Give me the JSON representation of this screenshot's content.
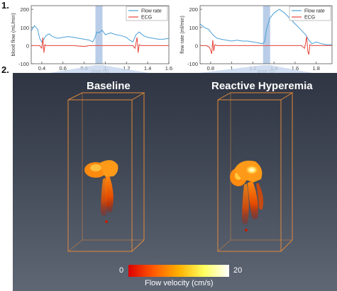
{
  "panel_labels": {
    "top": "1.",
    "bottom": "2."
  },
  "chart_data": [
    {
      "type": "line",
      "xlabel": "time (s)",
      "ylabel": "blood flow (mL/min)",
      "xlim": [
        0.3,
        1.6
      ],
      "ylim": [
        -100,
        220
      ],
      "xticks": [
        "0.4",
        "0.6",
        "0.8",
        "1",
        "1.2",
        "1.4",
        "1.6"
      ],
      "yticks": [
        "-100",
        "0",
        "100",
        "200"
      ],
      "highlight_x": 0.94,
      "legend_position": "top-right",
      "series": [
        {
          "name": "Flow rate",
          "color": "#4a9fd6",
          "x": [
            0.3,
            0.33,
            0.36,
            0.38,
            0.4,
            0.42,
            0.44,
            0.47,
            0.5,
            0.55,
            0.6,
            0.65,
            0.7,
            0.75,
            0.8,
            0.85,
            0.88,
            0.9,
            0.92,
            0.94,
            0.97,
            1.0,
            1.05,
            1.1,
            1.15,
            1.2,
            1.23,
            1.26,
            1.29,
            1.32,
            1.36,
            1.4,
            1.45,
            1.5,
            1.55,
            1.6
          ],
          "y": [
            80,
            110,
            90,
            40,
            20,
            35,
            55,
            65,
            50,
            40,
            45,
            50,
            45,
            40,
            35,
            30,
            20,
            40,
            75,
            70,
            85,
            60,
            70,
            60,
            55,
            45,
            30,
            20,
            60,
            75,
            55,
            45,
            40,
            35,
            35,
            40
          ]
        },
        {
          "name": "ECG",
          "color": "#e8453c",
          "x": [
            0.3,
            0.38,
            0.4,
            0.41,
            0.42,
            0.43,
            0.44,
            0.5,
            0.6,
            0.7,
            0.8,
            0.85,
            0.88,
            0.9,
            0.92,
            0.94,
            1.0,
            1.1,
            1.2,
            1.26,
            1.28,
            1.3,
            1.31,
            1.32,
            1.34,
            1.4,
            1.5,
            1.6
          ],
          "y": [
            0,
            0,
            -15,
            45,
            -40,
            5,
            0,
            0,
            0,
            0,
            -5,
            0,
            0,
            0,
            0,
            0,
            0,
            0,
            0,
            0,
            -15,
            45,
            -40,
            5,
            0,
            0,
            0,
            0
          ]
        }
      ]
    },
    {
      "type": "line",
      "xlabel": "time (s)",
      "ylabel": "flow rate (ml/min)",
      "xlim": [
        0.7,
        1.95
      ],
      "ylim": [
        -100,
        220
      ],
      "xticks": [
        "0.8",
        "1",
        "1.2",
        "1.4",
        "1.6",
        "1.8"
      ],
      "yticks": [
        "-100",
        "0",
        "100",
        "200"
      ],
      "highlight_x": 1.33,
      "legend_position": "top-right",
      "series": [
        {
          "name": "Flow rate",
          "color": "#4a9fd6",
          "x": [
            0.7,
            0.74,
            0.78,
            0.82,
            0.86,
            0.9,
            0.95,
            1.0,
            1.05,
            1.1,
            1.15,
            1.2,
            1.25,
            1.29,
            1.31,
            1.33,
            1.36,
            1.4,
            1.45,
            1.5,
            1.55,
            1.6,
            1.65,
            1.7,
            1.73,
            1.76,
            1.8,
            1.85,
            1.9,
            1.95
          ],
          "y": [
            120,
            100,
            90,
            60,
            40,
            35,
            30,
            25,
            30,
            25,
            25,
            20,
            15,
            10,
            20,
            90,
            150,
            180,
            200,
            180,
            150,
            120,
            90,
            60,
            30,
            10,
            20,
            10,
            5,
            5
          ]
        },
        {
          "name": "ECG",
          "color": "#e8453c",
          "x": [
            0.7,
            0.76,
            0.79,
            0.81,
            0.82,
            0.83,
            0.84,
            0.86,
            0.9,
            1.0,
            1.1,
            1.2,
            1.3,
            1.4,
            1.5,
            1.6,
            1.66,
            1.69,
            1.71,
            1.72,
            1.73,
            1.74,
            1.76,
            1.8,
            1.9,
            1.95
          ],
          "y": [
            0,
            0,
            -10,
            -45,
            30,
            -30,
            5,
            0,
            0,
            0,
            0,
            0,
            0,
            0,
            0,
            0,
            0,
            -15,
            50,
            -30,
            -50,
            5,
            0,
            0,
            0,
            0
          ]
        }
      ]
    }
  ],
  "visualization": {
    "left_title": "Baseline",
    "right_title": "Reactive Hyperemia",
    "colorbar": {
      "min_label": "0",
      "max_label": "20",
      "title": "Flow velocity (cm/s)",
      "colors": [
        "#dd0000",
        "#ff5a00",
        "#ffb000",
        "#ffff60",
        "#ffffff"
      ]
    },
    "box_color": "#e0883a"
  }
}
